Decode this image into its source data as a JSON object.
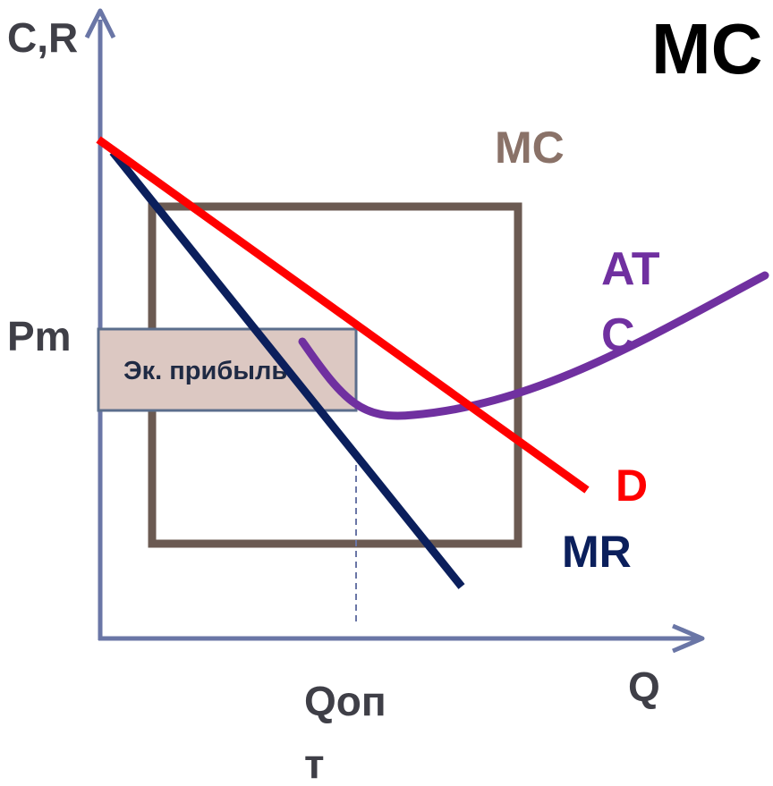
{
  "title": "MC",
  "axes": {
    "y_label": "C,R",
    "x_label": "Q",
    "price_label": "Pm",
    "quantity_label_line1": "Qоп",
    "quantity_label_line2": "т"
  },
  "curves": {
    "mc": "MC",
    "atc_line1": "AT",
    "atc_line2": "C",
    "demand": "D",
    "marginal_revenue": "MR"
  },
  "profit_box": "Эк. прибыль",
  "colors": {
    "axis": "#6a76a6",
    "title": "#000000",
    "axis_text": "#3f3f47",
    "mc": "#6b5a52",
    "mc_label": "#8a7268",
    "atc": "#7030a0",
    "demand": "#ff0000",
    "marginal_revenue": "#0b1f5c",
    "profit_fill": "#dcc8c2",
    "profit_border": "#5b6e8c",
    "guide": "#6a76a6"
  }
}
